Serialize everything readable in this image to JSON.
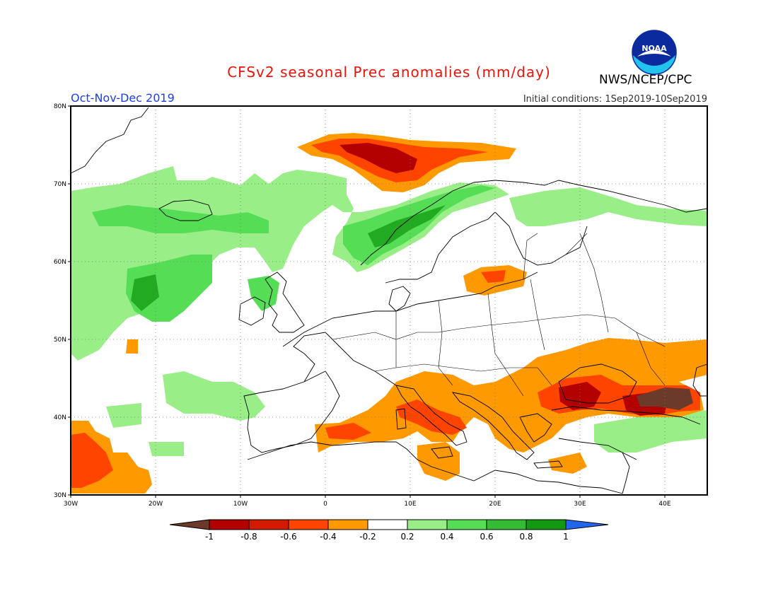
{
  "header": {
    "title": "CFSv2 seasonal Prec anomalies (mm/day)",
    "period": "Oct-Nov-Dec 2019",
    "initial_conditions": "Initial conditions: 1Sep2019-10Sep2019",
    "agency": "NWS/NCEP/CPC",
    "logo_text": "NOAA"
  },
  "map": {
    "lat_labels": [
      "80N",
      "70N",
      "60N",
      "50N",
      "40N",
      "30N"
    ],
    "lon_labels": [
      "30W",
      "20W",
      "10W",
      "0",
      "10E",
      "20E",
      "30E",
      "40E"
    ],
    "lat_range": [
      30,
      80
    ],
    "lon_range": [
      -30,
      45
    ],
    "grid": true
  },
  "colorbar": {
    "labels": [
      "-1",
      "-0.8",
      "-0.6",
      "-0.4",
      "-0.2",
      "0.2",
      "0.4",
      "0.6",
      "0.8",
      "1"
    ],
    "colors": [
      "#6b3a2a",
      "#b30000",
      "#ff4400",
      "#ff9900",
      "#ffffff",
      "#99ee88",
      "#55dd55",
      "#22aa22",
      "#119911",
      "#2266ee"
    ]
  }
}
